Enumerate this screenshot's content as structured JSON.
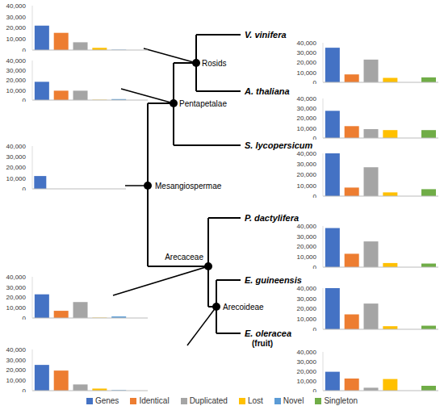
{
  "tree": {
    "nodes": [
      {
        "label": "Rosids"
      },
      {
        "label": "Pentapetalae"
      },
      {
        "label": "Mesangiospermae"
      },
      {
        "label": "Arecaceae"
      },
      {
        "label": "Arecoideae"
      }
    ],
    "leaves": [
      {
        "label": "V. vinifera"
      },
      {
        "label": "A. thaliana"
      },
      {
        "label": "S. lycopersicum"
      },
      {
        "label": "P. dactylifera"
      },
      {
        "label": "E. guineensis"
      },
      {
        "label": "E. oleracea",
        "sublabel": "(fruit)"
      }
    ]
  },
  "chart_data": [
    {
      "type": "bar",
      "categories": [
        "Genes",
        "Identical",
        "Duplicated",
        "Lost",
        "Novel",
        "Singleton"
      ],
      "values": [
        22000,
        15500,
        7000,
        2000,
        300,
        null
      ],
      "colors": [
        "#4472c4",
        "#ed7d31",
        "#a5a5a5",
        "#ffc000",
        "#5b9bd5",
        "#70ad47"
      ],
      "ylim": [
        0,
        40000
      ],
      "yticks": [
        0,
        {
          "value": 10000,
          "label": "10,000"
        },
        {
          "value": 20000,
          "label": "20,000"
        },
        {
          "value": 30000,
          "label": "30,000"
        },
        {
          "value": 40000,
          "label": "40,000"
        }
      ],
      "grid": false,
      "tick_labels": "y"
    },
    {
      "type": "bar",
      "categories": [
        "Genes",
        "Identical",
        "Duplicated",
        "Lost",
        "Novel",
        "Singleton"
      ],
      "values": [
        18500,
        9500,
        9500,
        300,
        1000,
        null
      ],
      "colors": [
        "#4472c4",
        "#ed7d31",
        "#a5a5a5",
        "#ffc000",
        "#5b9bd5",
        "#70ad47"
      ],
      "ylim": [
        0,
        40000
      ],
      "yticks": [
        0,
        {
          "value": 10000,
          "label": "10,000"
        },
        {
          "value": 20000,
          "label": "20,000"
        },
        {
          "value": 30000,
          "label": "30,000"
        },
        {
          "value": 40000,
          "label": "40,000"
        }
      ],
      "grid": false,
      "tick_labels": "y"
    },
    {
      "type": "bar",
      "categories": [
        "Genes",
        "Identical",
        "Duplicated",
        "Lost",
        "Novel",
        "Singleton"
      ],
      "values": [
        12000,
        null,
        null,
        null,
        null,
        null
      ],
      "colors": [
        "#4472c4",
        "#ed7d31",
        "#a5a5a5",
        "#ffc000",
        "#5b9bd5",
        "#70ad47"
      ],
      "ylim": [
        0,
        40000
      ],
      "yticks": [
        0,
        {
          "value": 10000,
          "label": "10,000"
        },
        {
          "value": 20000,
          "label": "20,000"
        },
        {
          "value": 30000,
          "label": "30,000"
        },
        {
          "value": 40000,
          "label": "40,000"
        }
      ],
      "grid": false,
      "tick_labels": "y"
    },
    {
      "type": "bar",
      "categories": [
        "Genes",
        "Identical",
        "Duplicated",
        "Lost",
        "Novel",
        "Singleton"
      ],
      "values": [
        23000,
        7000,
        15500,
        300,
        1500,
        null
      ],
      "colors": [
        "#4472c4",
        "#ed7d31",
        "#a5a5a5",
        "#ffc000",
        "#5b9bd5",
        "#70ad47"
      ],
      "ylim": [
        0,
        40000
      ],
      "yticks": [
        0,
        {
          "value": 10000,
          "label": "10,000"
        },
        {
          "value": 20000,
          "label": "20,000"
        },
        {
          "value": 30000,
          "label": "30,000"
        },
        {
          "value": 40000,
          "label": "40,000"
        }
      ],
      "grid": false,
      "tick_labels": "y"
    },
    {
      "type": "bar",
      "categories": [
        "Genes",
        "Identical",
        "Duplicated",
        "Lost",
        "Novel",
        "Singleton"
      ],
      "values": [
        25000,
        19500,
        6000,
        2000,
        500,
        null
      ],
      "colors": [
        "#4472c4",
        "#ed7d31",
        "#a5a5a5",
        "#ffc000",
        "#5b9bd5",
        "#70ad47"
      ],
      "ylim": [
        0,
        40000
      ],
      "yticks": [
        0,
        {
          "value": 10000,
          "label": "10,000"
        },
        {
          "value": 20000,
          "label": "20,000"
        },
        {
          "value": 30000,
          "label": "30,000"
        },
        {
          "value": 40000,
          "label": "40,000"
        }
      ],
      "grid": false,
      "tick_labels": "y"
    },
    {
      "type": "bar",
      "categories": [
        "Genes",
        "Identical",
        "Duplicated",
        "Lost",
        "Novel",
        "Singleton"
      ],
      "values": [
        35000,
        8000,
        23000,
        4500,
        null,
        5000
      ],
      "colors": [
        "#4472c4",
        "#ed7d31",
        "#a5a5a5",
        "#ffc000",
        "#5b9bd5",
        "#70ad47"
      ],
      "ylim": [
        0,
        40000
      ],
      "yticks": [
        0,
        {
          "value": 10000,
          "label": "10,000"
        },
        {
          "value": 20000,
          "label": "20,000"
        },
        {
          "value": 30000,
          "label": "30,000"
        },
        {
          "value": 40000,
          "label": "40,000"
        }
      ],
      "grid": false,
      "tick_labels": "y"
    },
    {
      "type": "bar",
      "categories": [
        "Genes",
        "Identical",
        "Duplicated",
        "Lost",
        "Novel",
        "Singleton"
      ],
      "values": [
        27500,
        12000,
        9000,
        8000,
        null,
        8000
      ],
      "colors": [
        "#4472c4",
        "#ed7d31",
        "#a5a5a5",
        "#ffc000",
        "#5b9bd5",
        "#70ad47"
      ],
      "ylim": [
        0,
        40000
      ],
      "yticks": [
        0,
        {
          "value": 10000,
          "label": "10,000"
        },
        {
          "value": 20000,
          "label": "20,000"
        },
        {
          "value": 30000,
          "label": "30,000"
        },
        {
          "value": 40000,
          "label": "40,000"
        }
      ],
      "grid": false,
      "tick_labels": "y"
    },
    {
      "type": "bar",
      "categories": [
        "Genes",
        "Identical",
        "Duplicated",
        "Lost",
        "Novel",
        "Singleton"
      ],
      "values": [
        40000,
        8000,
        27000,
        3500,
        null,
        6500
      ],
      "colors": [
        "#4472c4",
        "#ed7d31",
        "#a5a5a5",
        "#ffc000",
        "#5b9bd5",
        "#70ad47"
      ],
      "ylim": [
        0,
        40000
      ],
      "yticks": [
        0,
        {
          "value": 10000,
          "label": "10,000"
        },
        {
          "value": 20000,
          "label": "20,000"
        },
        {
          "value": 30000,
          "label": "30,000"
        },
        {
          "value": 40000,
          "label": "40,000"
        }
      ],
      "grid": false,
      "tick_labels": "y"
    },
    {
      "type": "bar",
      "categories": [
        "Genes",
        "Identical",
        "Duplicated",
        "Lost",
        "Novel",
        "Singleton"
      ],
      "values": [
        38000,
        13000,
        25000,
        4000,
        null,
        3500
      ],
      "colors": [
        "#4472c4",
        "#ed7d31",
        "#a5a5a5",
        "#ffc000",
        "#5b9bd5",
        "#70ad47"
      ],
      "ylim": [
        0,
        40000
      ],
      "yticks": [
        0,
        {
          "value": 10000,
          "label": "10,000"
        },
        {
          "value": 20000,
          "label": "20,000"
        },
        {
          "value": 30000,
          "label": "30,000"
        },
        {
          "value": 40000,
          "label": "40,000"
        }
      ],
      "grid": false,
      "tick_labels": "y"
    },
    {
      "type": "bar",
      "categories": [
        "Genes",
        "Identical",
        "Duplicated",
        "Lost",
        "Novel",
        "Singleton"
      ],
      "values": [
        40000,
        14500,
        25000,
        3000,
        null,
        3500
      ],
      "colors": [
        "#4472c4",
        "#ed7d31",
        "#a5a5a5",
        "#ffc000",
        "#5b9bd5",
        "#70ad47"
      ],
      "ylim": [
        0,
        40000
      ],
      "yticks": [
        0,
        {
          "value": 10000,
          "label": "10,000"
        },
        {
          "value": 20000,
          "label": "20,000"
        },
        {
          "value": 30000,
          "label": "30,000"
        },
        {
          "value": 40000,
          "label": "40,000"
        }
      ],
      "grid": false,
      "tick_labels": "y"
    },
    {
      "type": "bar",
      "categories": [
        "Genes",
        "Identical",
        "Duplicated",
        "Lost",
        "Novel",
        "Singleton"
      ],
      "values": [
        19500,
        12500,
        3000,
        12000,
        null,
        5000
      ],
      "colors": [
        "#4472c4",
        "#ed7d31",
        "#a5a5a5",
        "#ffc000",
        "#5b9bd5",
        "#70ad47"
      ],
      "ylim": [
        0,
        40000
      ],
      "yticks": [
        0,
        {
          "value": 10000,
          "label": "10,000"
        },
        {
          "value": 20000,
          "label": "20,000"
        },
        {
          "value": 30000,
          "label": "30,000"
        },
        {
          "value": 40000,
          "label": "40,000"
        }
      ],
      "grid": false,
      "tick_labels": "y"
    }
  ]
}
